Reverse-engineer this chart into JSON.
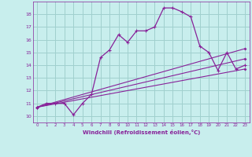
{
  "xlabel": "Windchill (Refroidissement éolien,°C)",
  "bg_color": "#c8eeed",
  "grid_color": "#a0d0ce",
  "line_color": "#882299",
  "ylim": [
    9.5,
    19.0
  ],
  "xlim": [
    -0.5,
    23.5
  ],
  "yticks": [
    10,
    11,
    12,
    13,
    14,
    15,
    16,
    17,
    18
  ],
  "xticks": [
    0,
    1,
    2,
    3,
    4,
    5,
    6,
    7,
    8,
    9,
    10,
    11,
    12,
    13,
    14,
    15,
    16,
    17,
    18,
    19,
    20,
    21,
    22,
    23
  ],
  "line1_x": [
    0,
    1,
    2,
    3,
    4,
    5,
    6,
    7,
    8,
    9,
    10,
    11,
    12,
    13,
    14,
    15,
    16,
    17,
    18,
    19,
    20,
    21,
    22,
    23
  ],
  "line1_y": [
    10.7,
    11.0,
    11.0,
    11.0,
    10.1,
    11.0,
    11.7,
    14.6,
    15.2,
    16.4,
    15.8,
    16.7,
    16.7,
    17.0,
    18.5,
    18.5,
    18.2,
    17.8,
    15.5,
    15.0,
    13.6,
    15.0,
    13.7,
    14.0
  ],
  "line2_x": [
    0,
    23
  ],
  "line2_y": [
    10.7,
    13.7
  ],
  "line3_x": [
    0,
    23
  ],
  "line3_y": [
    10.7,
    15.3
  ],
  "line4_x": [
    0,
    23
  ],
  "line4_y": [
    10.7,
    14.5
  ]
}
